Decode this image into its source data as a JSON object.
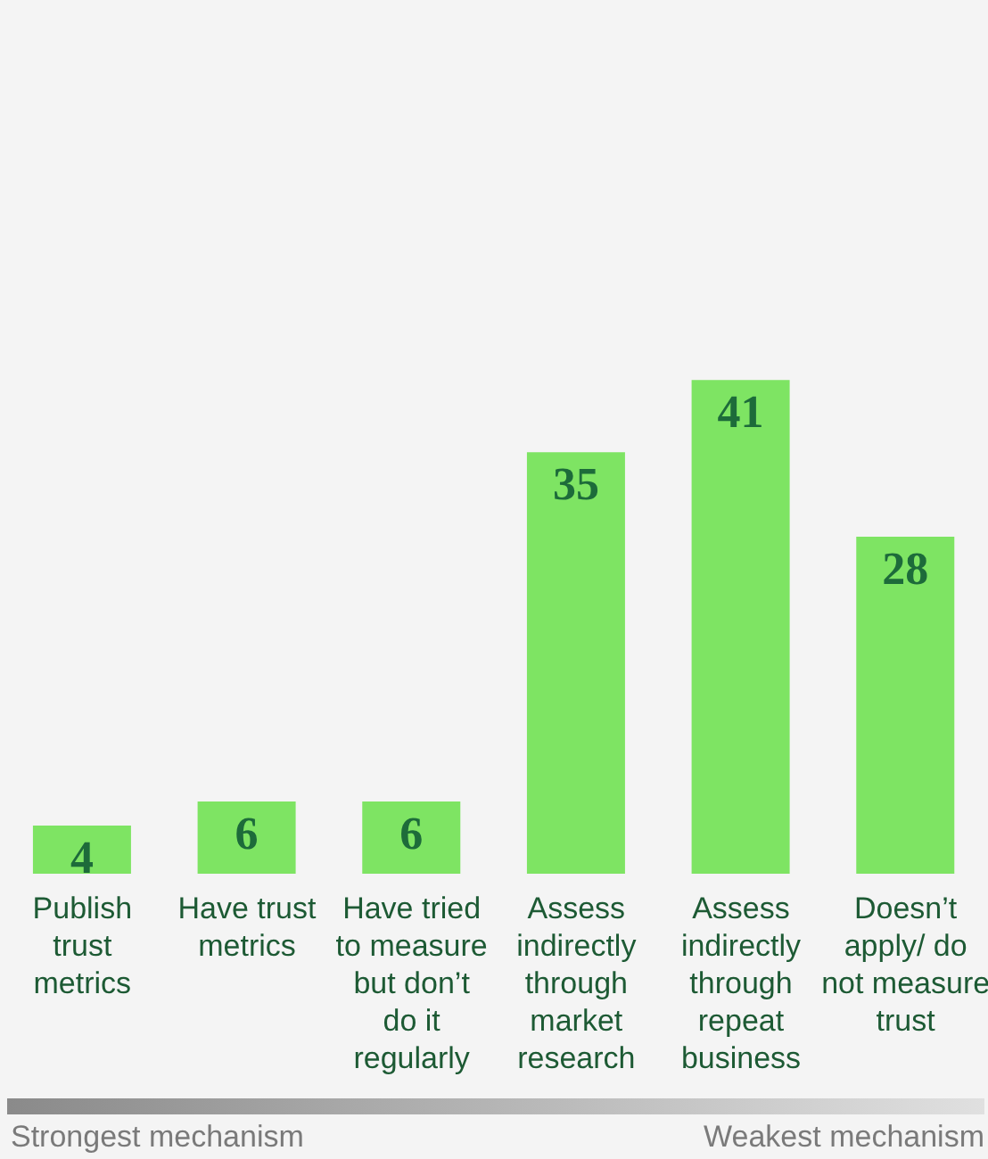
{
  "chart_data": {
    "type": "bar",
    "categories": [
      "Publish trust metrics",
      "Have trust metrics",
      "Have tried to measure but don’t do it regularly",
      "Assess indirectly through market research",
      "Assess indirectly through repeat business",
      "Doesn’t apply/ do not measure trust"
    ],
    "values": [
      4,
      6,
      6,
      35,
      41,
      28
    ],
    "color": "#7ee463",
    "data_labels": true,
    "annotations": [
      "Strongest mechanism",
      "Weakest mechanism"
    ]
  }
}
